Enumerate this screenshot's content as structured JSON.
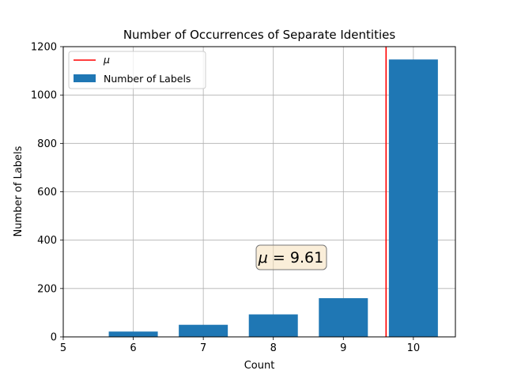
{
  "chart_data": {
    "type": "bar",
    "title": "Number of Occurrences of Separate Identities",
    "xlabel": "Count",
    "ylabel": "Number of Labels",
    "xlim": [
      5,
      10.6
    ],
    "ylim": [
      0,
      1200
    ],
    "xticks": [
      5,
      6,
      7,
      8,
      9,
      10
    ],
    "yticks": [
      0,
      200,
      400,
      600,
      800,
      1000,
      1200
    ],
    "grid": true,
    "legend_position": "upper left",
    "series": [
      {
        "name": "Number of Labels",
        "color": "#1f77b4",
        "x": [
          6,
          7,
          8,
          9,
          10
        ],
        "values": [
          22,
          50,
          93,
          160,
          1147
        ]
      }
    ],
    "mean_line": {
      "name": "μ",
      "x": 9.61,
      "color": "#ff0000"
    },
    "annotation": {
      "text_prefix": "μ",
      "text_suffix": " = 9.61",
      "x": 8.25,
      "y": 320
    }
  }
}
